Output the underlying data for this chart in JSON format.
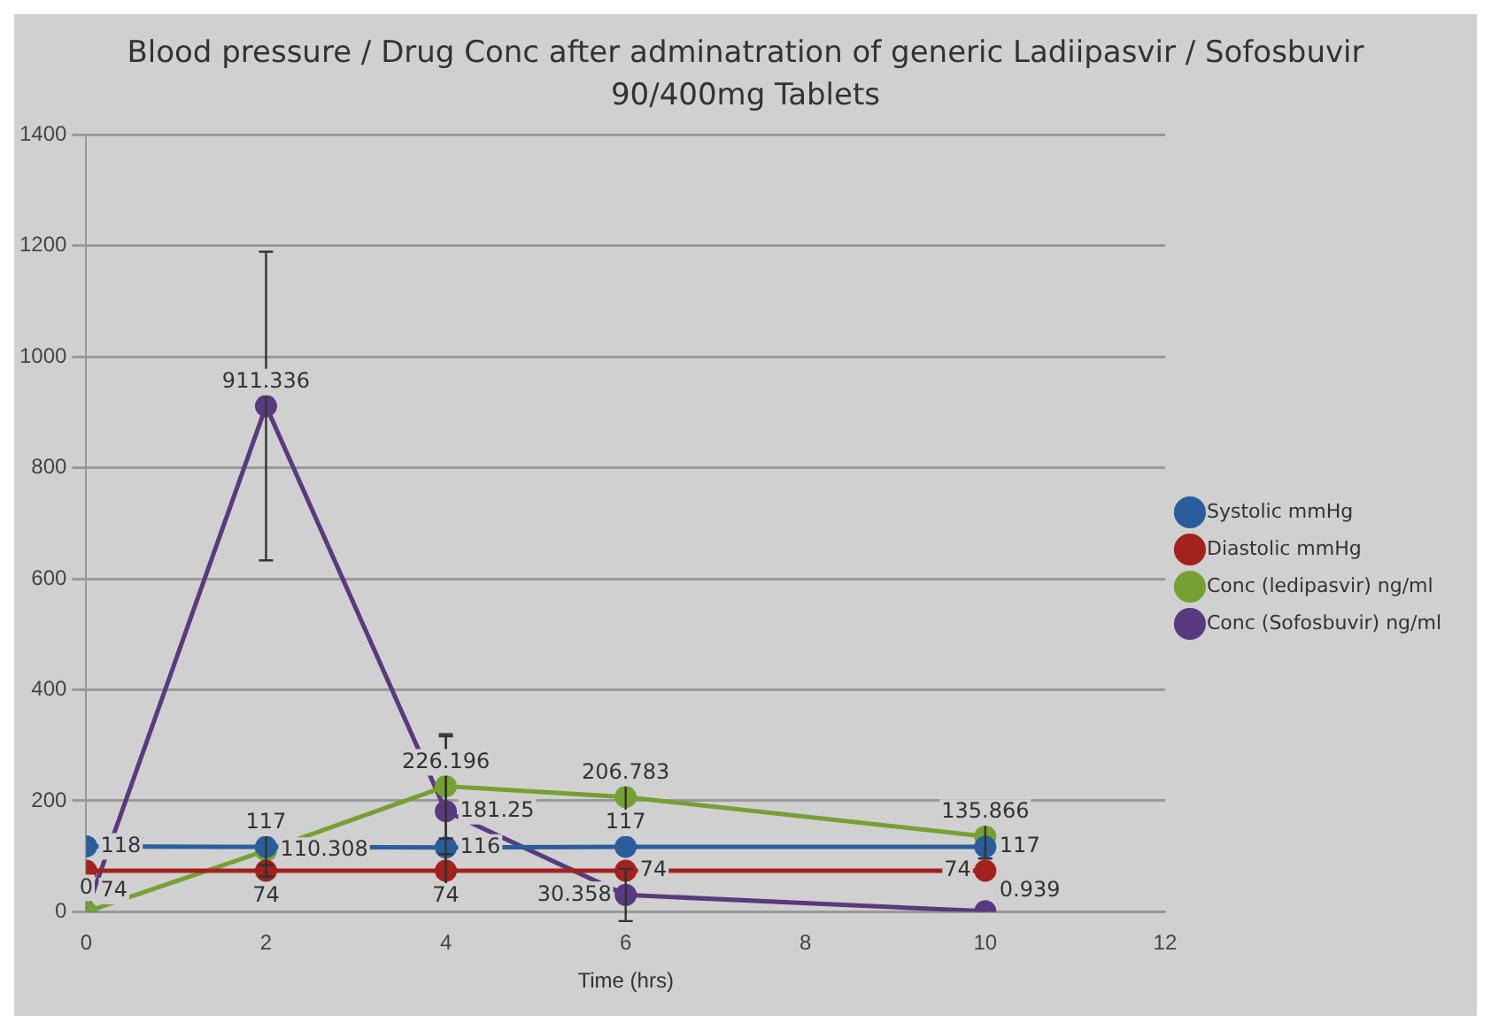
{
  "chart_data": {
    "type": "line",
    "title": "Blood pressure / Drug Conc after adminatration of generic Ladiipasvir / Sofosbuvir 90/400mg Tablets",
    "xlabel": "Time (hrs)",
    "x": [
      0,
      2,
      4,
      6,
      10
    ],
    "series": [
      {
        "name": "Systolic mmHg",
        "color": "#2a5d9c",
        "values": [
          118,
          117,
          116,
          117,
          117
        ],
        "value_labels": [
          "118",
          "117",
          "116",
          "117",
          "117"
        ]
      },
      {
        "name": "Diastolic mmHg",
        "color": "#a3221e",
        "values": [
          74,
          74,
          74,
          74,
          74
        ],
        "errors": [
          null,
          10,
          30,
          null,
          null
        ],
        "value_labels": [
          "74",
          "74",
          "74",
          "74",
          "74"
        ]
      },
      {
        "name": "Conc (ledipasvir) ng/ml",
        "color": "#76a033",
        "values": [
          0,
          110.308,
          226.196,
          206.783,
          135.866
        ],
        "errors": [
          null,
          47,
          94,
          40,
          40
        ],
        "value_labels": [
          "0",
          "110.308",
          "226.196",
          "206.783",
          "135.866"
        ]
      },
      {
        "name": "Conc (Sofosbuvir) ng/ml",
        "color": "#5a3a7e",
        "values": [
          0,
          911.336,
          181.25,
          30.358,
          0.939
        ],
        "errors": [
          null,
          278,
          135,
          47,
          null
        ],
        "value_labels": [
          null,
          "911.336",
          "181.25",
          "30.358",
          "0.939"
        ]
      }
    ],
    "xlim": [
      0,
      12
    ],
    "xticks": [
      0,
      2,
      4,
      6,
      8,
      10,
      12
    ],
    "ylim": [
      0,
      1400
    ],
    "yticks": [
      0,
      200,
      400,
      600,
      800,
      1000,
      1200,
      1400
    ],
    "grid": "y",
    "legend": "right",
    "marker": "circle"
  }
}
